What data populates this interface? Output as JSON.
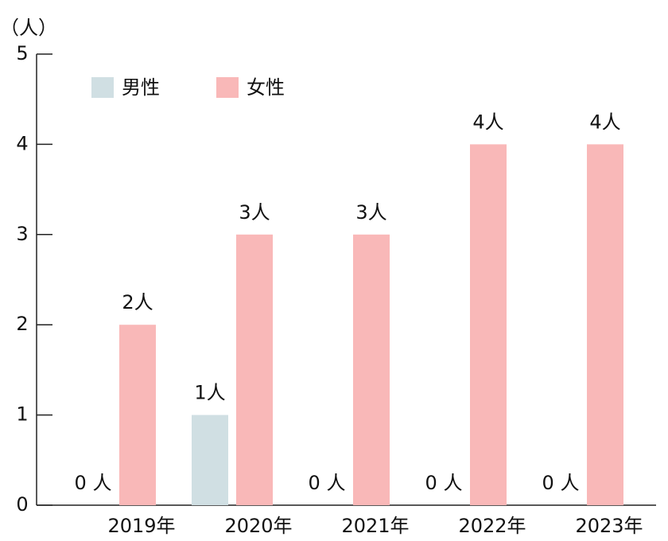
{
  "chart_data": {
    "type": "bar",
    "y_label": "（人）",
    "categories": [
      "2019年",
      "2020年",
      "2021年",
      "2022年",
      "2023年"
    ],
    "series": [
      {
        "name": "男性",
        "color": "#d0dfe3",
        "values": [
          0,
          1,
          0,
          0,
          0
        ],
        "value_labels": [
          "0 人",
          "1人",
          "0 人",
          "0 人",
          "0 人"
        ]
      },
      {
        "name": "女性",
        "color": "#f9b8b8",
        "values": [
          2,
          3,
          3,
          4,
          4
        ],
        "value_labels": [
          "2人",
          "3人",
          "3人",
          "4人",
          "4人"
        ]
      }
    ],
    "ylim": [
      0,
      5
    ],
    "yticks": [
      0,
      1,
      2,
      3,
      4,
      5
    ],
    "legend": "top-left"
  }
}
